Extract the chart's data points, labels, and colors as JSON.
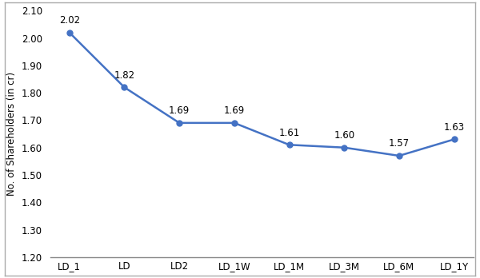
{
  "x_labels": [
    "LD_1",
    "LD",
    "LD2",
    "LD_1W",
    "LD_1M",
    "LD_3M",
    "LD_6M",
    "LD_1Y"
  ],
  "y_values": [
    2.02,
    1.82,
    1.69,
    1.69,
    1.61,
    1.6,
    1.57,
    1.63
  ],
  "ylabel": "No. of Shareholders (in cr)",
  "ylim": [
    1.2,
    2.1
  ],
  "yticks": [
    1.2,
    1.3,
    1.4,
    1.5,
    1.6,
    1.7,
    1.8,
    1.9,
    2.0,
    2.1
  ],
  "line_color": "#4472C4",
  "marker": "o",
  "marker_size": 5,
  "line_width": 1.8,
  "data_labels": [
    "2.02",
    "1.82",
    "1.69",
    "1.69",
    "1.61",
    "1.60",
    "1.57",
    "1.63"
  ],
  "label_offsets": [
    0.025,
    0.025,
    0.025,
    0.025,
    0.025,
    0.025,
    0.025,
    0.025
  ],
  "font_size_labels": 8.5,
  "font_size_axis": 8.5,
  "background_color": "#ffffff",
  "outer_border_color": "#aaaaaa",
  "bottom_spine_color": "#888888"
}
